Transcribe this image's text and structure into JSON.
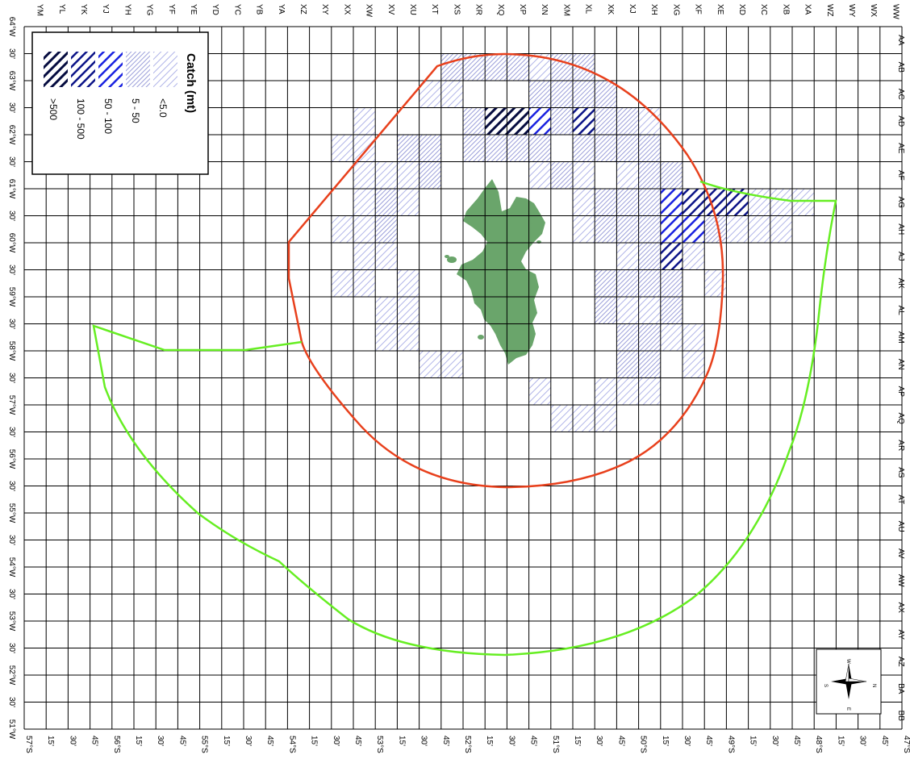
{
  "map": {
    "row_labels": [
      "WW",
      "WX",
      "WY",
      "WZ",
      "XA",
      "XB",
      "XC",
      "XD",
      "XE",
      "XF",
      "XG",
      "XH",
      "XJ",
      "XK",
      "XL",
      "XM",
      "XN",
      "XP",
      "XQ",
      "XR",
      "XS",
      "XT",
      "XU",
      "XV",
      "XW",
      "XX",
      "XY",
      "XZ",
      "YA",
      "YB",
      "YC",
      "YD",
      "YE",
      "YF",
      "YG",
      "YH",
      "YJ",
      "YK",
      "YL",
      "YM"
    ],
    "col_labels": [
      "AA",
      "AB",
      "AC",
      "AD",
      "AE",
      "AF",
      "AG",
      "AH",
      "AJ",
      "AK",
      "AL",
      "AM",
      "AN",
      "AP",
      "AQ",
      "AR",
      "AS",
      "AT",
      "AU",
      "AV",
      "AW",
      "AX",
      "AY",
      "AZ",
      "BA",
      "BB"
    ],
    "left_axis_labels": [
      "64°W",
      "30'",
      "63°W",
      "30'",
      "62°W",
      "30'",
      "61°W",
      "30'",
      "60°W",
      "30'",
      "59°W",
      "30'",
      "58°W",
      "30'",
      "57°W",
      "30'",
      "56°W",
      "30'",
      "55°W",
      "30'",
      "54°W",
      "30'",
      "53°W",
      "30'",
      "52°W",
      "30'",
      "51°W"
    ],
    "bottom_axis_labels": [
      "47°S",
      "45'",
      "30'",
      "15'",
      "48°S",
      "45'",
      "30'",
      "15'",
      "49°S",
      "45'",
      "30'",
      "15'",
      "50°S",
      "45'",
      "30'",
      "15'",
      "51°S",
      "45'",
      "30'",
      "15'",
      "52°S",
      "45'",
      "30'",
      "15'",
      "53°S",
      "45'",
      "30'",
      "15'",
      "54°S",
      "45'",
      "30'",
      "15'",
      "55°S",
      "45'",
      "30'",
      "15'",
      "56°S",
      "45'",
      "30'",
      "15'",
      "57°S"
    ],
    "legend": {
      "title": "Catch (mt)",
      "classes": [
        {
          "label": "<5.0",
          "level": 1
        },
        {
          "label": "5 - 50",
          "level": 2
        },
        {
          "label": "50 - 100",
          "level": 3
        },
        {
          "label": "100 - 500",
          "level": 4
        },
        {
          "label": ">500",
          "level": 5
        }
      ]
    },
    "compass": {
      "n": "N",
      "s": "S",
      "e": "E",
      "w": "W"
    },
    "colors": {
      "level1": "#b0b4e8",
      "level2": "#8286d0",
      "level3": "#1a22e0",
      "level4": "#0c1488",
      "level5": "#060c40",
      "island": "#6aa56b",
      "zone_boundary": "#e8401c",
      "fishing_area_boundary": "#66ee22",
      "grid": "#000000"
    },
    "catch_cells": [
      [
        "XS",
        "AB",
        2
      ],
      [
        "XR",
        "AB",
        2
      ],
      [
        "XQ",
        "AB",
        2
      ],
      [
        "XP",
        "AB",
        2
      ],
      [
        "XN",
        "AB",
        1
      ],
      [
        "XM",
        "AB",
        2
      ],
      [
        "XL",
        "AB",
        2
      ],
      [
        "XT",
        "AC",
        1
      ],
      [
        "XS",
        "AC",
        1
      ],
      [
        "XN",
        "AC",
        2
      ],
      [
        "XM",
        "AC",
        2
      ],
      [
        "XL",
        "AC",
        2
      ],
      [
        "XK",
        "AC",
        2
      ],
      [
        "XW",
        "AD",
        1
      ],
      [
        "XR",
        "AD",
        2
      ],
      [
        "XQ",
        "AD",
        5
      ],
      [
        "XP",
        "AD",
        5
      ],
      [
        "XN",
        "AD",
        3
      ],
      [
        "XM",
        "AD",
        2
      ],
      [
        "XL",
        "AD",
        4
      ],
      [
        "XK",
        "AD",
        2
      ],
      [
        "XJ",
        "AD",
        2
      ],
      [
        "XH",
        "AD",
        1
      ],
      [
        "XX",
        "AE",
        1
      ],
      [
        "XW",
        "AE",
        1
      ],
      [
        "XU",
        "AE",
        2
      ],
      [
        "XT",
        "AE",
        2
      ],
      [
        "XR",
        "AE",
        2
      ],
      [
        "XQ",
        "AE",
        2
      ],
      [
        "XP",
        "AE",
        2
      ],
      [
        "XN",
        "AE",
        2
      ],
      [
        "XL",
        "AE",
        2
      ],
      [
        "XK",
        "AE",
        2
      ],
      [
        "XJ",
        "AE",
        2
      ],
      [
        "XH",
        "AE",
        2
      ],
      [
        "XW",
        "AF",
        1
      ],
      [
        "XV",
        "AF",
        1
      ],
      [
        "XU",
        "AF",
        1
      ],
      [
        "XT",
        "AF",
        2
      ],
      [
        "XN",
        "AF",
        1
      ],
      [
        "XM",
        "AF",
        2
      ],
      [
        "XL",
        "AF",
        1
      ],
      [
        "XJ",
        "AF",
        1
      ],
      [
        "XH",
        "AF",
        2
      ],
      [
        "XG",
        "AF",
        2
      ],
      [
        "XW",
        "AG",
        1
      ],
      [
        "XV",
        "AG",
        2
      ],
      [
        "XU",
        "AG",
        1
      ],
      [
        "XL",
        "AG",
        1
      ],
      [
        "XK",
        "AG",
        2
      ],
      [
        "XJ",
        "AG",
        2
      ],
      [
        "XH",
        "AG",
        2
      ],
      [
        "XG",
        "AG",
        3
      ],
      [
        "XF",
        "AG",
        4
      ],
      [
        "XE",
        "AG",
        4
      ],
      [
        "XD",
        "AG",
        4
      ],
      [
        "XC",
        "AG",
        1
      ],
      [
        "XB",
        "AG",
        1
      ],
      [
        "XA",
        "AG",
        1
      ],
      [
        "XX",
        "AH",
        1
      ],
      [
        "XW",
        "AH",
        1
      ],
      [
        "XV",
        "AH",
        2
      ],
      [
        "XL",
        "AH",
        1
      ],
      [
        "XK",
        "AH",
        2
      ],
      [
        "XJ",
        "AH",
        2
      ],
      [
        "XH",
        "AH",
        2
      ],
      [
        "XG",
        "AH",
        3
      ],
      [
        "XF",
        "AH",
        3
      ],
      [
        "XE",
        "AH",
        2
      ],
      [
        "XD",
        "AH",
        1
      ],
      [
        "XC",
        "AH",
        1
      ],
      [
        "XB",
        "AH",
        1
      ],
      [
        "XW",
        "AJ",
        1
      ],
      [
        "XV",
        "AJ",
        1
      ],
      [
        "XJ",
        "AJ",
        1
      ],
      [
        "XH",
        "AJ",
        2
      ],
      [
        "XG",
        "AJ",
        4
      ],
      [
        "XF",
        "AJ",
        1
      ],
      [
        "XX",
        "AK",
        1
      ],
      [
        "XW",
        "AK",
        1
      ],
      [
        "XU",
        "AK",
        1
      ],
      [
        "XK",
        "AK",
        2
      ],
      [
        "XJ",
        "AK",
        2
      ],
      [
        "XH",
        "AK",
        2
      ],
      [
        "XG",
        "AK",
        2
      ],
      [
        "XE",
        "AK",
        1
      ],
      [
        "XV",
        "AL",
        1
      ],
      [
        "XU",
        "AL",
        1
      ],
      [
        "XK",
        "AL",
        2
      ],
      [
        "XJ",
        "AL",
        1
      ],
      [
        "XH",
        "AL",
        1
      ],
      [
        "XG",
        "AL",
        2
      ],
      [
        "XV",
        "AM",
        1
      ],
      [
        "XU",
        "AM",
        1
      ],
      [
        "XJ",
        "AM",
        2
      ],
      [
        "XH",
        "AM",
        2
      ],
      [
        "XF",
        "AM",
        1
      ],
      [
        "XG",
        "AM",
        1
      ],
      [
        "XT",
        "AN",
        1
      ],
      [
        "XS",
        "AN",
        1
      ],
      [
        "XJ",
        "AN",
        2
      ],
      [
        "XH",
        "AN",
        2
      ],
      [
        "XF",
        "AN",
        1
      ],
      [
        "XN",
        "AP",
        1
      ],
      [
        "XJ",
        "AP",
        1
      ],
      [
        "XK",
        "AP",
        1
      ],
      [
        "XH",
        "AP",
        1
      ],
      [
        "XL",
        "AQ",
        1
      ],
      [
        "XK",
        "AQ",
        1
      ],
      [
        "XM",
        "AQ",
        1
      ]
    ]
  }
}
